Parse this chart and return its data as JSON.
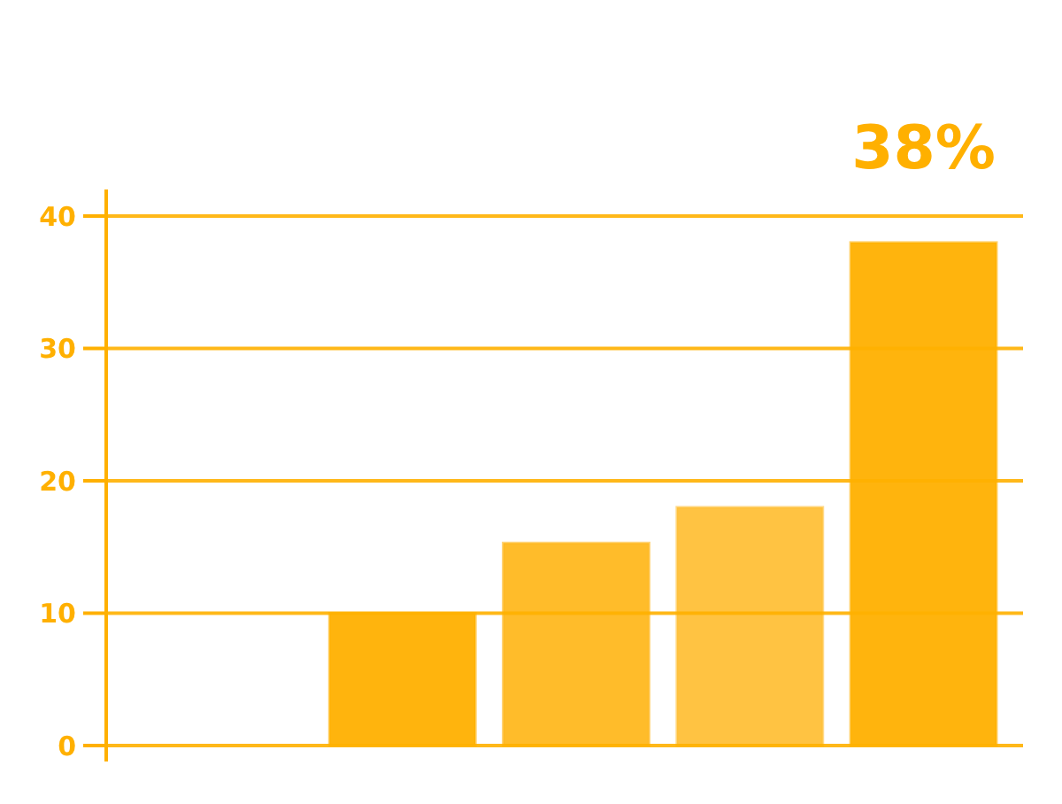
{
  "chart_data": {
    "type": "bar",
    "categories": [
      null,
      null,
      null,
      null,
      null
    ],
    "values": [
      null,
      10,
      15.3,
      18,
      38
    ],
    "colors": [
      null,
      "#ffb000",
      "#ffb81f",
      "#ffc038",
      "#ffb000"
    ],
    "ylim": [
      0,
      40
    ],
    "yticks": [
      0,
      10,
      20,
      30,
      40
    ],
    "grid": "y",
    "tick_labels": "y",
    "annotations": [
      {
        "text": "38%",
        "y": 38
      }
    ]
  }
}
